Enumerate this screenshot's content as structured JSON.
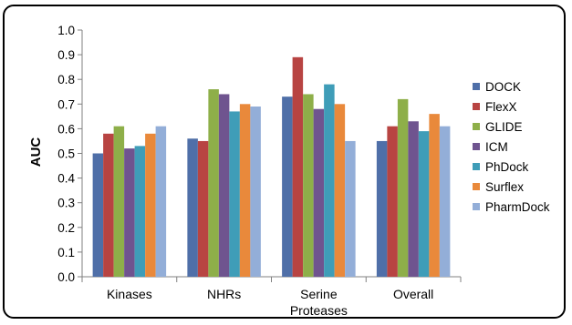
{
  "chart_data": {
    "type": "bar",
    "title": "",
    "xlabel": "",
    "ylabel": "AUC",
    "ylim": [
      0,
      1.0
    ],
    "yticks": [
      "0.0",
      "0.1",
      "0.2",
      "0.3",
      "0.4",
      "0.5",
      "0.6",
      "0.7",
      "0.8",
      "0.9",
      "1.0"
    ],
    "grid": false,
    "legend_position": "right",
    "categories": [
      [
        "Kinases"
      ],
      [
        "NHRs"
      ],
      [
        "Serine",
        "Proteases"
      ],
      [
        "Overall"
      ]
    ],
    "series": [
      {
        "name": "DOCK",
        "color": "#4F6FA8",
        "values": [
          0.5,
          0.56,
          0.73,
          0.55
        ]
      },
      {
        "name": "FlexX",
        "color": "#B84442",
        "values": [
          0.58,
          0.55,
          0.89,
          0.61
        ]
      },
      {
        "name": "GLIDE",
        "color": "#8EAF49",
        "values": [
          0.61,
          0.76,
          0.74,
          0.72
        ]
      },
      {
        "name": "ICM",
        "color": "#6F548F",
        "values": [
          0.52,
          0.74,
          0.68,
          0.63
        ]
      },
      {
        "name": "PhDock",
        "color": "#3F9DB8",
        "values": [
          0.53,
          0.67,
          0.78,
          0.59
        ]
      },
      {
        "name": "Surflex",
        "color": "#E9893B",
        "values": [
          0.58,
          0.7,
          0.7,
          0.66
        ]
      },
      {
        "name": "PharmDock",
        "color": "#93AED8",
        "values": [
          0.61,
          0.69,
          0.55,
          0.61
        ]
      }
    ]
  }
}
